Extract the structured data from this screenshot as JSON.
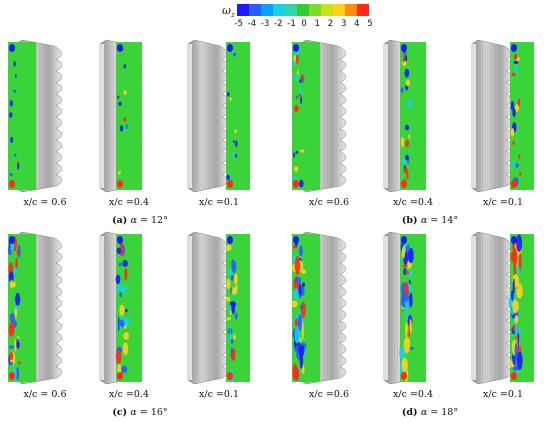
{
  "colorbar": {
    "symbol": "ω",
    "subscript": "z",
    "ticks": [
      "-5",
      "-4",
      "-3",
      "-2",
      "-1",
      "0",
      "1",
      "2",
      "3",
      "4",
      "5"
    ],
    "colors": [
      "#1a1aff",
      "#2b5cff",
      "#0aa0ff",
      "#18d2e6",
      "#2fd7a8",
      "#33cc33",
      "#7bdc2a",
      "#c9e21c",
      "#ffd21a",
      "#ff8a14",
      "#ff2a1a"
    ]
  },
  "field_color": "#3ad43a",
  "body_color": "#b8b8b8",
  "rows": [
    {
      "panels": [
        {
          "label": "x/c = 0.6"
        },
        {
          "label": "x/c =0.4"
        },
        {
          "label": "x/c =0.1"
        },
        {
          "label": "x/c =0.6"
        },
        {
          "label": "x/c =0.4"
        },
        {
          "label": "x/c =0.1"
        }
      ],
      "captions": [
        {
          "tag": "(a)",
          "alpha": "α",
          "value": " = 12°"
        },
        {
          "tag": "(b)",
          "alpha": "α",
          "value": " = 14°"
        }
      ]
    },
    {
      "panels": [
        {
          "label": "x/c = 0.6"
        },
        {
          "label": "x/c =0.4"
        },
        {
          "label": "x/c =0.1"
        },
        {
          "label": "x/c =0.6"
        },
        {
          "label": "x/c =0.4"
        },
        {
          "label": "x/c =0.1"
        }
      ],
      "captions": [
        {
          "tag": "(c)",
          "alpha": "α",
          "value": " = 16°"
        },
        {
          "tag": "(d)",
          "alpha": "α",
          "value": " = 18°"
        }
      ]
    }
  ]
}
